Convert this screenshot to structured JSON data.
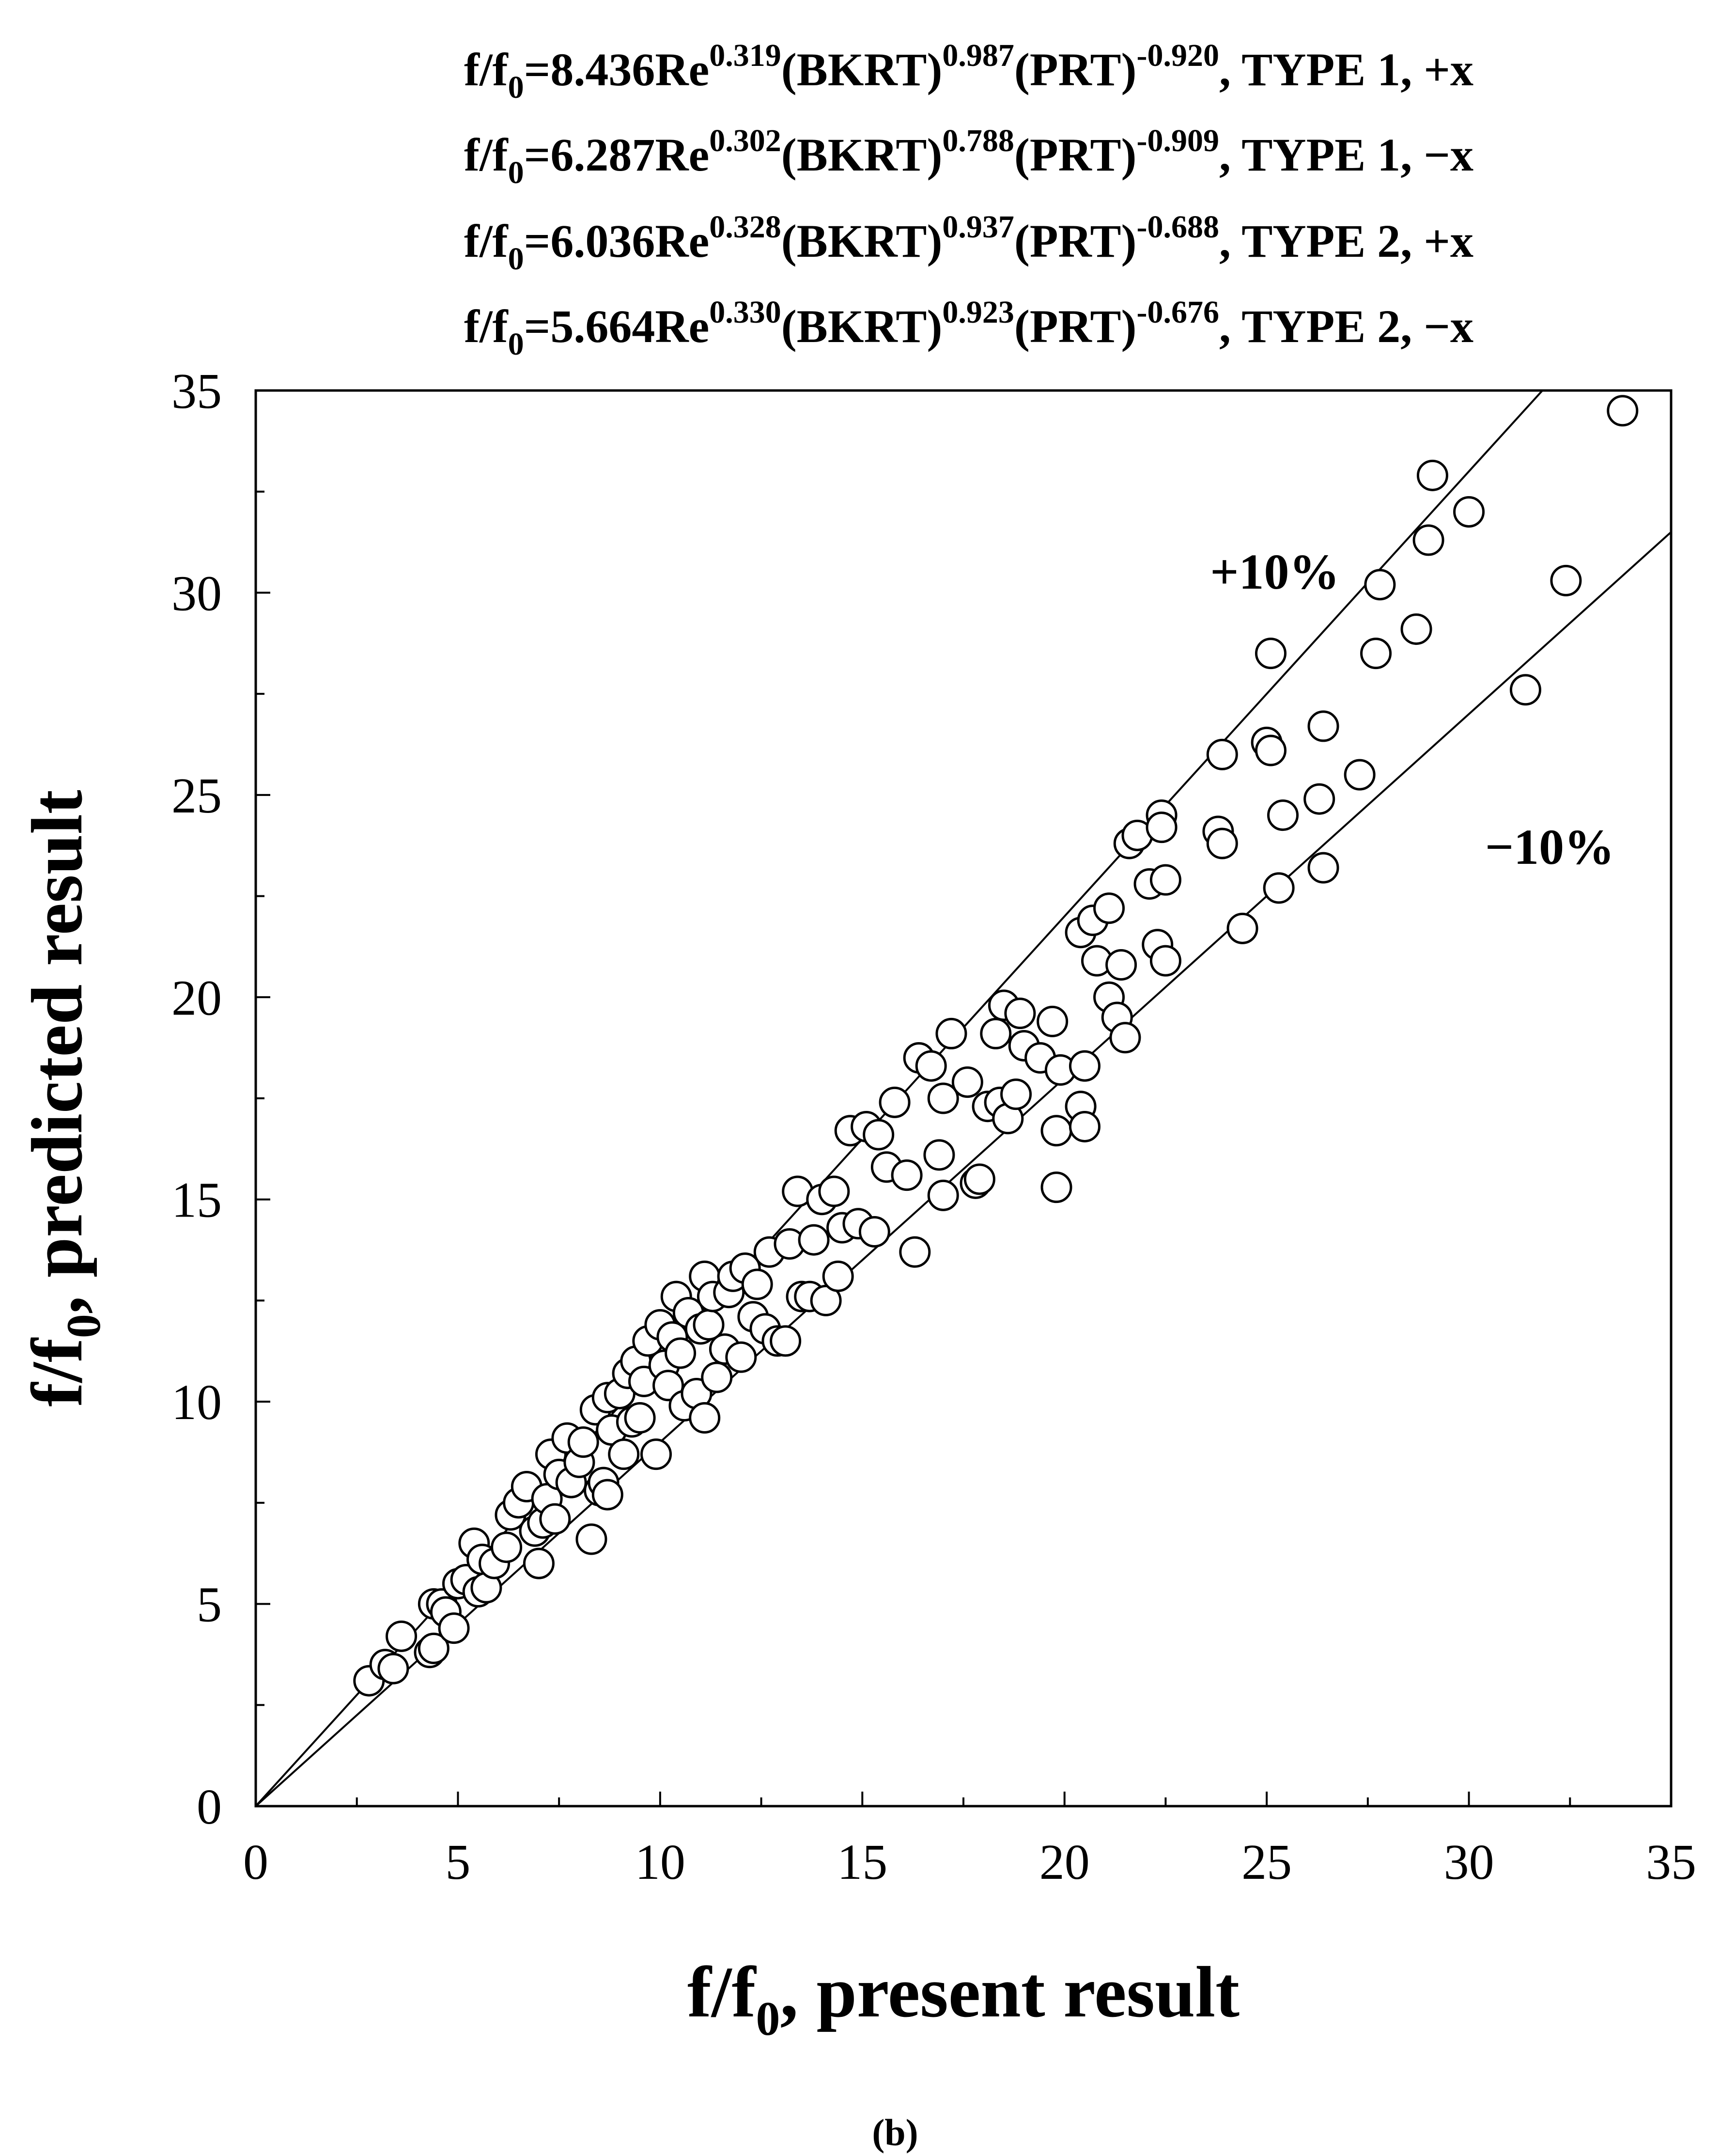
{
  "chart_data": {
    "type": "scatter",
    "equations": [
      {
        "lhs": "f/f",
        "lhs_sub": "0",
        "coef": "=8.436Re",
        "e1": "0.319",
        "t1": "(BKRT)",
        "e2": "0.987",
        "t2": "(PRT)",
        "e3": "-0.920",
        "tail": ", TYPE 1, +x"
      },
      {
        "lhs": "f/f",
        "lhs_sub": "0",
        "coef": "=6.287Re",
        "e1": "0.302",
        "t1": "(BKRT)",
        "e2": "0.788",
        "t2": "(PRT)",
        "e3": "-0.909",
        "tail": ", TYPE 1, −x"
      },
      {
        "lhs": "f/f",
        "lhs_sub": "0",
        "coef": "=6.036Re",
        "e1": "0.328",
        "t1": "(BKRT)",
        "e2": "0.937",
        "t2": "(PRT)",
        "e3": "-0.688",
        "tail": ", TYPE 2, +x"
      },
      {
        "lhs": "f/f",
        "lhs_sub": "0",
        "coef": "=5.664Re",
        "e1": "0.330",
        "t1": "(BKRT)",
        "e2": "0.923",
        "t2": "(PRT)",
        "e3": "-0.676",
        "tail": ", TYPE 2, −x"
      }
    ],
    "xlabel": {
      "pre": "f/f",
      "sub": "0",
      "post": ", present result"
    },
    "ylabel": {
      "pre": "f/f",
      "sub": "0",
      "post": ", predicted result"
    },
    "xlim": [
      0,
      35
    ],
    "ylim": [
      0,
      35
    ],
    "xticks": [
      0,
      5,
      10,
      15,
      20,
      25,
      30,
      35
    ],
    "yticks": [
      0,
      5,
      10,
      15,
      20,
      25,
      30,
      35
    ],
    "grid": false,
    "bands": [
      {
        "label": "+10%",
        "slope": 1.1,
        "label_at": [
          25.2,
          30.1
        ]
      },
      {
        "label": "−10%",
        "slope": 0.9,
        "label_at": [
          32.0,
          23.3
        ]
      }
    ],
    "caption": "(b)",
    "points": [
      [
        2.8,
        3.1
      ],
      [
        3.2,
        3.5
      ],
      [
        3.4,
        3.4
      ],
      [
        3.6,
        4.2
      ],
      [
        4.3,
        3.8
      ],
      [
        4.4,
        5.0
      ],
      [
        4.4,
        3.9
      ],
      [
        4.6,
        5.0
      ],
      [
        4.7,
        4.8
      ],
      [
        4.9,
        4.4
      ],
      [
        5.0,
        5.5
      ],
      [
        5.2,
        5.6
      ],
      [
        5.4,
        6.5
      ],
      [
        5.5,
        5.3
      ],
      [
        5.6,
        6.1
      ],
      [
        5.7,
        5.4
      ],
      [
        5.9,
        6.0
      ],
      [
        6.2,
        6.4
      ],
      [
        6.3,
        7.2
      ],
      [
        6.5,
        7.5
      ],
      [
        6.7,
        7.9
      ],
      [
        6.9,
        6.8
      ],
      [
        7.0,
        6.0
      ],
      [
        7.1,
        7.0
      ],
      [
        7.2,
        7.6
      ],
      [
        7.3,
        8.7
      ],
      [
        7.4,
        7.1
      ],
      [
        7.5,
        8.2
      ],
      [
        7.7,
        9.1
      ],
      [
        7.8,
        8.0
      ],
      [
        8.0,
        8.5
      ],
      [
        8.1,
        9.0
      ],
      [
        8.3,
        6.6
      ],
      [
        8.4,
        9.8
      ],
      [
        8.5,
        7.8
      ],
      [
        8.6,
        8.0
      ],
      [
        8.7,
        10.1
      ],
      [
        8.7,
        7.7
      ],
      [
        8.8,
        9.3
      ],
      [
        9.0,
        10.2
      ],
      [
        9.1,
        8.7
      ],
      [
        9.2,
        10.7
      ],
      [
        9.3,
        9.5
      ],
      [
        9.4,
        11.0
      ],
      [
        9.5,
        9.6
      ],
      [
        9.6,
        10.5
      ],
      [
        9.7,
        11.5
      ],
      [
        9.9,
        8.7
      ],
      [
        10.0,
        11.9
      ],
      [
        10.1,
        10.9
      ],
      [
        10.2,
        10.4
      ],
      [
        10.3,
        11.6
      ],
      [
        10.4,
        12.6
      ],
      [
        10.5,
        11.2
      ],
      [
        10.6,
        9.9
      ],
      [
        10.7,
        12.2
      ],
      [
        10.9,
        10.2
      ],
      [
        11.0,
        11.8
      ],
      [
        11.1,
        13.1
      ],
      [
        11.1,
        9.6
      ],
      [
        11.2,
        11.9
      ],
      [
        11.3,
        12.6
      ],
      [
        11.4,
        10.6
      ],
      [
        11.6,
        11.3
      ],
      [
        11.7,
        12.7
      ],
      [
        11.8,
        13.1
      ],
      [
        12.0,
        11.1
      ],
      [
        12.1,
        13.3
      ],
      [
        12.3,
        12.1
      ],
      [
        12.4,
        12.9
      ],
      [
        12.6,
        11.8
      ],
      [
        12.7,
        13.7
      ],
      [
        12.9,
        11.5
      ],
      [
        13.1,
        11.5
      ],
      [
        13.2,
        13.9
      ],
      [
        13.4,
        15.2
      ],
      [
        13.5,
        12.6
      ],
      [
        13.7,
        12.6
      ],
      [
        13.8,
        14.0
      ],
      [
        14.0,
        15.0
      ],
      [
        14.1,
        12.5
      ],
      [
        14.3,
        15.2
      ],
      [
        14.4,
        13.1
      ],
      [
        14.5,
        14.3
      ],
      [
        14.7,
        16.7
      ],
      [
        14.9,
        14.4
      ],
      [
        15.1,
        16.8
      ],
      [
        15.3,
        14.2
      ],
      [
        15.4,
        16.6
      ],
      [
        15.6,
        15.8
      ],
      [
        15.8,
        17.4
      ],
      [
        16.1,
        15.6
      ],
      [
        16.3,
        13.7
      ],
      [
        16.4,
        18.5
      ],
      [
        16.7,
        18.3
      ],
      [
        16.9,
        16.1
      ],
      [
        17.0,
        17.5
      ],
      [
        17.0,
        15.1
      ],
      [
        17.2,
        19.1
      ],
      [
        17.6,
        17.9
      ],
      [
        17.8,
        15.4
      ],
      [
        17.9,
        15.5
      ],
      [
        18.1,
        17.3
      ],
      [
        18.3,
        19.1
      ],
      [
        18.4,
        17.4
      ],
      [
        18.5,
        19.8
      ],
      [
        18.6,
        17.0
      ],
      [
        18.8,
        17.6
      ],
      [
        18.9,
        19.6
      ],
      [
        19.0,
        18.8
      ],
      [
        19.4,
        18.5
      ],
      [
        19.7,
        19.4
      ],
      [
        19.8,
        16.7
      ],
      [
        19.8,
        15.3
      ],
      [
        19.9,
        18.2
      ],
      [
        20.4,
        21.6
      ],
      [
        20.4,
        17.3
      ],
      [
        20.5,
        18.3
      ],
      [
        20.5,
        16.8
      ],
      [
        20.7,
        21.9
      ],
      [
        20.8,
        20.9
      ],
      [
        21.1,
        22.2
      ],
      [
        21.1,
        20.0
      ],
      [
        21.3,
        19.5
      ],
      [
        21.4,
        20.8
      ],
      [
        21.5,
        19.0
      ],
      [
        21.6,
        23.8
      ],
      [
        21.8,
        24.0
      ],
      [
        22.1,
        22.8
      ],
      [
        22.3,
        21.3
      ],
      [
        22.4,
        24.5
      ],
      [
        22.4,
        24.2
      ],
      [
        22.5,
        22.9
      ],
      [
        22.5,
        20.9
      ],
      [
        23.8,
        24.1
      ],
      [
        23.9,
        26.0
      ],
      [
        23.9,
        23.8
      ],
      [
        24.4,
        21.7
      ],
      [
        25.0,
        26.3
      ],
      [
        25.1,
        28.5
      ],
      [
        25.1,
        26.1
      ],
      [
        25.3,
        22.7
      ],
      [
        25.4,
        24.5
      ],
      [
        26.3,
        24.9
      ],
      [
        26.4,
        23.2
      ],
      [
        26.4,
        26.7
      ],
      [
        27.3,
        25.5
      ],
      [
        27.7,
        28.5
      ],
      [
        27.8,
        30.2
      ],
      [
        28.7,
        29.1
      ],
      [
        29.0,
        31.3
      ],
      [
        29.1,
        32.9
      ],
      [
        30.0,
        32.0
      ],
      [
        31.4,
        27.6
      ],
      [
        32.4,
        30.3
      ],
      [
        33.8,
        34.5
      ]
    ]
  }
}
